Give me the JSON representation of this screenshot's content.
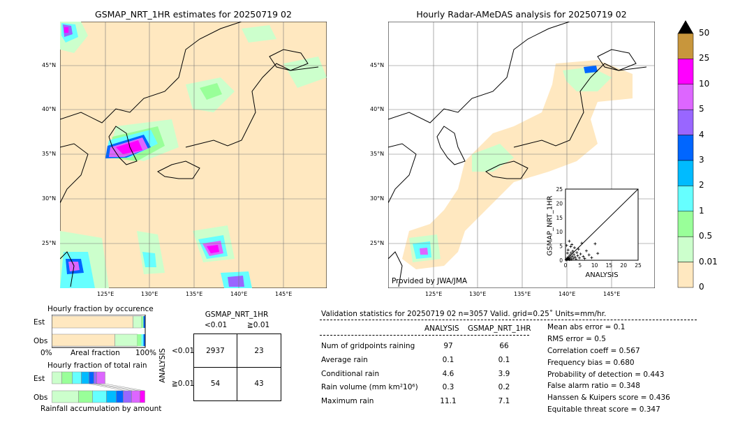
{
  "left_map": {
    "title": "GSMAP_NRT_1HR estimates for 20250719 02",
    "lat_labels": [
      "45°N",
      "40°N",
      "35°N",
      "30°N",
      "25°N"
    ],
    "lon_labels": [
      "125°E",
      "130°E",
      "135°E",
      "140°E",
      "145°E"
    ]
  },
  "right_map": {
    "title": "Hourly Radar-AMeDAS analysis for 20250719 02",
    "lat_labels": [
      "45°N",
      "40°N",
      "35°N",
      "30°N",
      "25°N"
    ],
    "lon_labels": [
      "125°E",
      "130°E",
      "135°E",
      "140°E",
      "145°E"
    ],
    "credit": "Provided by JWA/JMA"
  },
  "colorbar": {
    "labels": [
      "50",
      "25",
      "10",
      "5",
      "4",
      "3",
      "2",
      "1",
      "0.5",
      "0.01",
      "0"
    ],
    "colors": [
      "#c8963c",
      "#ff00ff",
      "#dd66ff",
      "#9966ff",
      "#0066ff",
      "#00bbff",
      "#66ffff",
      "#99ff99",
      "#ccffcc",
      "#ffe8c0"
    ]
  },
  "occurrence": {
    "title": "Hourly fraction by occurence",
    "row_labels": [
      "Est",
      "Obs"
    ],
    "axis_left": "0%",
    "axis_mid": "Areal fraction",
    "axis_right": "100%"
  },
  "total_rain": {
    "title": "Hourly fraction of total rain",
    "row_labels": [
      "Est",
      "Obs"
    ],
    "axis_label": "Rainfall accumulation by amount"
  },
  "contingency": {
    "title": "GSMAP_NRT_1HR",
    "col_labels": [
      "<0.01",
      "≧0.01"
    ],
    "row_axis": "ANALYSIS",
    "row_labels": [
      "<0.01",
      "≧0.01"
    ],
    "cells": [
      [
        "2937",
        "23"
      ],
      [
        "54",
        "43"
      ]
    ]
  },
  "validation": {
    "header": "Validation statistics for 20250719 02  n=3057 Valid. grid=0.25˚ Units=mm/hr.",
    "col_headers": [
      "ANALYSIS",
      "GSMAP_NRT_1HR"
    ],
    "rows": [
      {
        "label": "Num of gridpoints raining",
        "analysis": "97",
        "gsmap": "66"
      },
      {
        "label": "Average rain",
        "analysis": "0.1",
        "gsmap": "0.1"
      },
      {
        "label": "Conditional rain",
        "analysis": "4.6",
        "gsmap": "3.9"
      },
      {
        "label": "Rain volume (mm km²10⁶)",
        "analysis": "0.3",
        "gsmap": "0.2"
      },
      {
        "label": "Maximum rain",
        "analysis": "11.1",
        "gsmap": "7.1"
      }
    ],
    "scores": [
      "Mean abs error =    0.1",
      "RMS error =    0.5",
      "Correlation coeff =  0.567",
      "Frequency bias =  0.680",
      "Probability of detection =  0.443",
      "False alarm ratio =  0.348",
      "Hanssen & Kuipers score =  0.436",
      "Equitable threat score =  0.347"
    ]
  },
  "chart_data": {
    "type": "scatter",
    "xlabel": "ANALYSIS",
    "ylabel": "GSMAP_NRT_1HR",
    "xlim": [
      0,
      25
    ],
    "ylim": [
      0,
      25
    ],
    "ticks": [
      "0",
      "5",
      "10",
      "15",
      "20",
      "25"
    ],
    "points": [
      [
        0.2,
        0.1
      ],
      [
        0.3,
        0.3
      ],
      [
        0.5,
        0.2
      ],
      [
        0.6,
        0.8
      ],
      [
        0.8,
        0.4
      ],
      [
        1.0,
        1.2
      ],
      [
        1.2,
        0.6
      ],
      [
        1.4,
        0.2
      ],
      [
        1.5,
        1.8
      ],
      [
        1.7,
        0.9
      ],
      [
        1.9,
        2.6
      ],
      [
        2.1,
        0.3
      ],
      [
        2.3,
        1.4
      ],
      [
        2.5,
        3.2
      ],
      [
        2.7,
        0.7
      ],
      [
        2.9,
        2.0
      ],
      [
        3.1,
        4.4
      ],
      [
        3.3,
        1.1
      ],
      [
        3.6,
        0.4
      ],
      [
        3.9,
        2.7
      ],
      [
        4.2,
        1.6
      ],
      [
        4.5,
        3.9
      ],
      [
        4.8,
        0.8
      ],
      [
        5.2,
        2.2
      ],
      [
        5.6,
        6.0
      ],
      [
        6.1,
        1.3
      ],
      [
        6.6,
        0.6
      ],
      [
        7.2,
        3.3
      ],
      [
        8.1,
        1.9
      ],
      [
        9.0,
        0.9
      ],
      [
        10.2,
        5.8
      ],
      [
        11.1,
        2.4
      ],
      [
        0.4,
        5.2
      ],
      [
        0.9,
        3.6
      ],
      [
        1.3,
        6.7
      ],
      [
        0.7,
        2.5
      ],
      [
        1.8,
        4.8
      ],
      [
        2.2,
        5.5
      ]
    ]
  }
}
